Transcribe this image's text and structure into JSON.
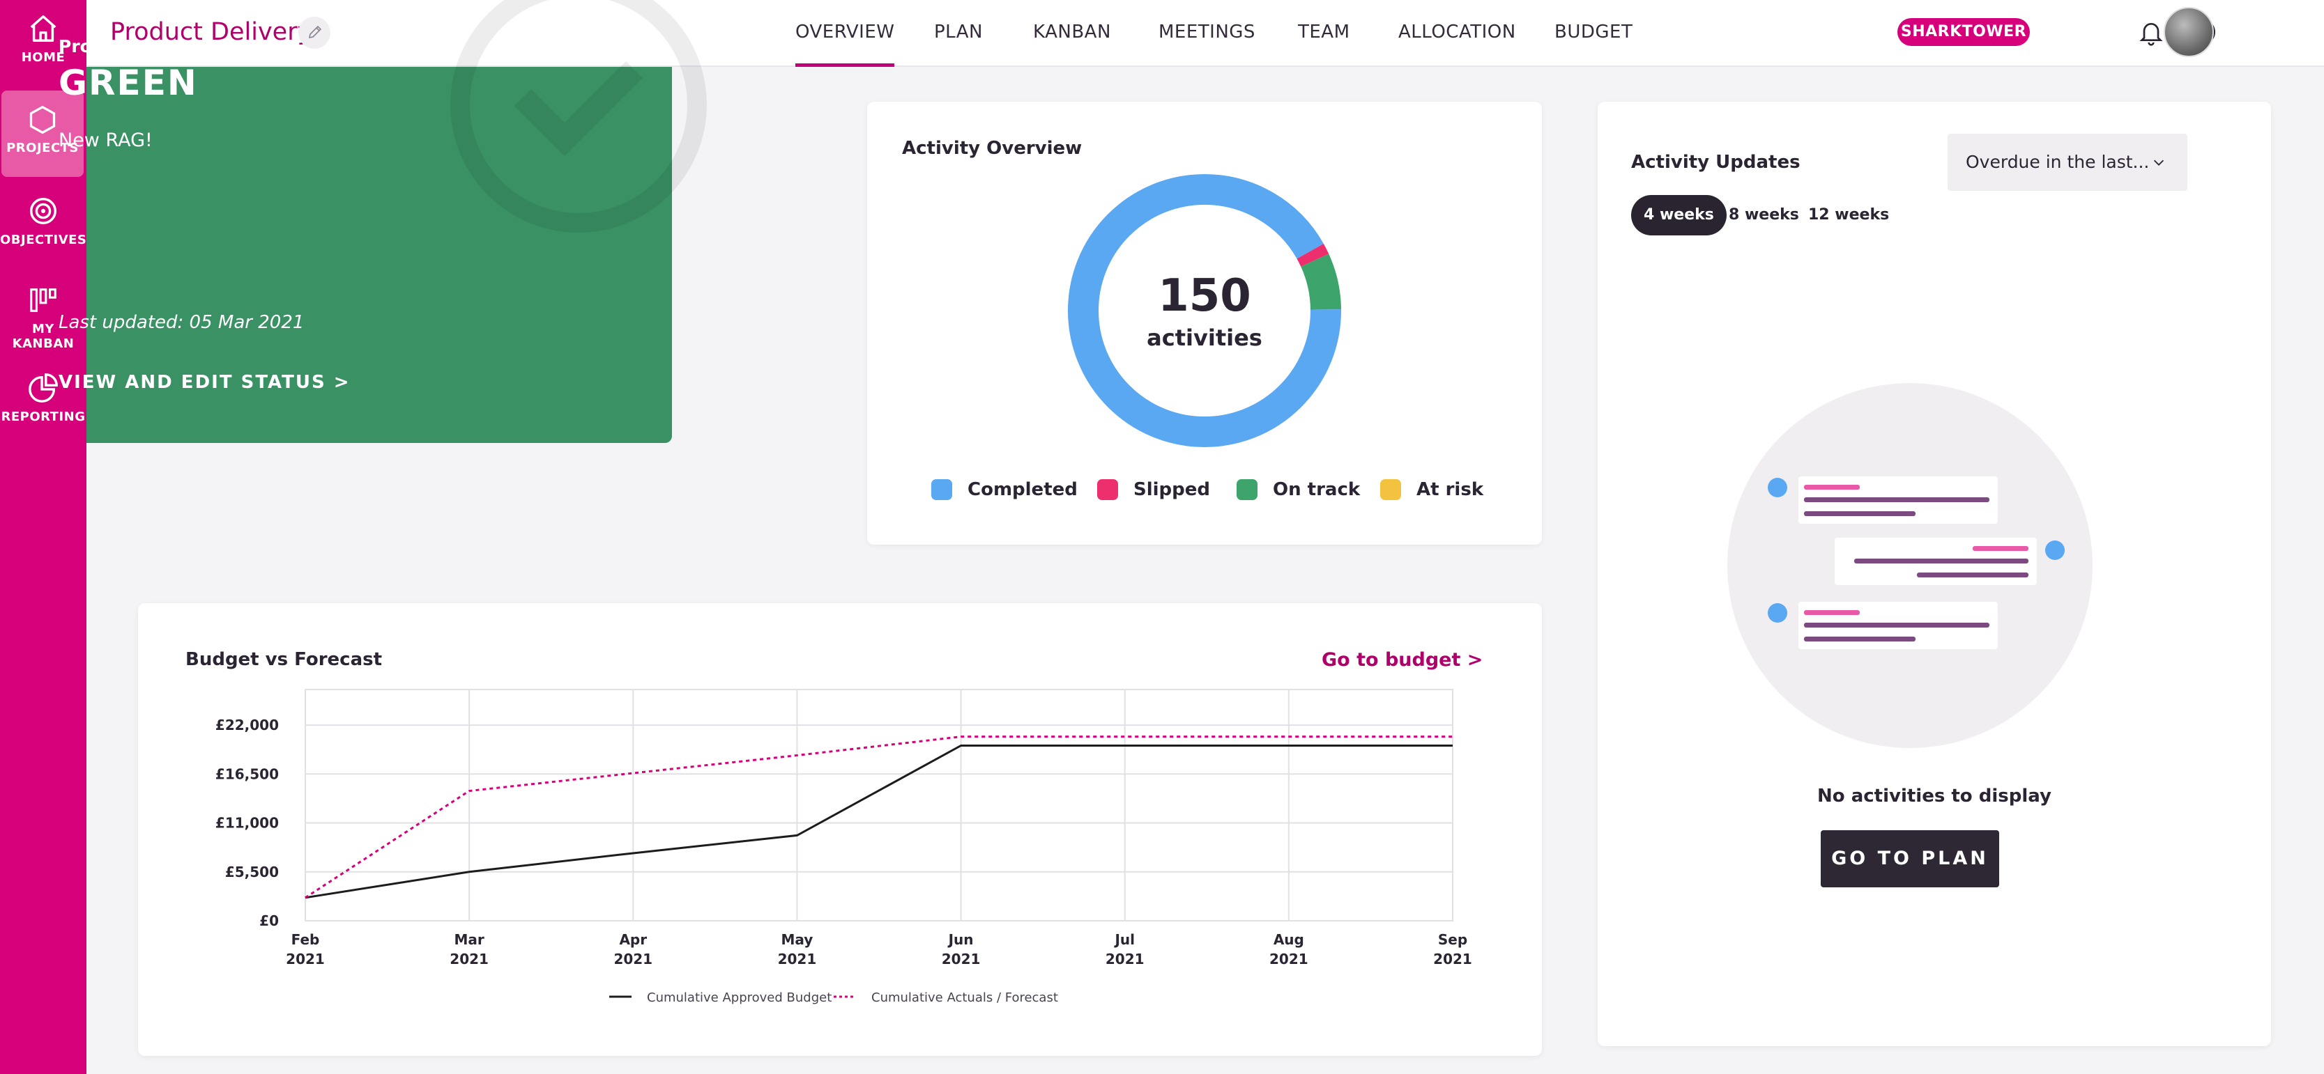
{
  "sidebar": {
    "items": [
      {
        "label": "HOME",
        "icon": "home-icon"
      },
      {
        "label": "PROJECTS",
        "icon": "hexagon-icon"
      },
      {
        "label": "OBJECTIVES",
        "icon": "target-icon"
      },
      {
        "label": "MY KANBAN",
        "icon": "kanban-icon"
      },
      {
        "label": "REPORTING",
        "icon": "pie-chart-icon"
      }
    ]
  },
  "header": {
    "project_title": "Product Delivery",
    "tabs": [
      "OVERVIEW",
      "PLAN",
      "KANBAN",
      "MEETINGS",
      "TEAM",
      "ALLOCATION",
      "BUDGET"
    ],
    "active_tab": "OVERVIEW",
    "brand_badge": "SHARKTOWER"
  },
  "status": {
    "label": "Project status",
    "value": "GREEN",
    "note": "New RAG!",
    "last_updated": "Last updated: 05 Mar 2021",
    "link": "VIEW AND EDIT STATUS >",
    "color": "#3a9163"
  },
  "activity_overview": {
    "title": "Activity Overview",
    "total": "150",
    "total_label": "activities",
    "legend": [
      {
        "label": "Completed",
        "color": "#5aa7f2"
      },
      {
        "label": "Slipped",
        "color": "#ee2f6d"
      },
      {
        "label": "On track",
        "color": "#3da46b"
      },
      {
        "label": "At risk",
        "color": "#f3c23e"
      }
    ]
  },
  "activity_updates": {
    "title": "Activity Updates",
    "select_value": "Overdue in the last...",
    "periods": [
      "4 weeks",
      "8 weeks",
      "12 weeks"
    ],
    "active_period": "4 weeks",
    "empty_text": "No activities to display",
    "button": "GO TO PLAN"
  },
  "budget": {
    "title": "Budget vs Forecast",
    "link": "Go to budget >"
  },
  "chart_data": [
    {
      "type": "pie",
      "title": "Activity Overview",
      "labels": [
        "Completed",
        "Slipped",
        "On track",
        "At risk"
      ],
      "values": [
        138,
        2,
        10,
        0
      ],
      "total": 150
    },
    {
      "type": "line",
      "title": "Budget vs Forecast",
      "x": [
        "Feb 2021",
        "Mar 2021",
        "Apr 2021",
        "May 2021",
        "Jun 2021",
        "Jul 2021",
        "Aug 2021",
        "Sep 2021"
      ],
      "xticks": [
        [
          "Feb",
          "2021"
        ],
        [
          "Mar",
          "2021"
        ],
        [
          "Apr",
          "2021"
        ],
        [
          "May",
          "2021"
        ],
        [
          "Jun",
          "2021"
        ],
        [
          "Jul",
          "2021"
        ],
        [
          "Aug",
          "2021"
        ],
        [
          "Sep",
          "2021"
        ]
      ],
      "yticks": [
        "£0",
        "£5,500",
        "£11,000",
        "£16,500",
        "£22,000"
      ],
      "ytick_values": [
        0,
        5500,
        11000,
        16500,
        22000
      ],
      "ylim": [
        0,
        26000
      ],
      "grid": true,
      "legend_position": "bottom",
      "series": [
        {
          "name": "Cumulative Approved Budget",
          "values": [
            2600,
            5500,
            7600,
            9600,
            19700,
            19700,
            19700,
            19700
          ],
          "color": "#1c1c1c",
          "dash": false
        },
        {
          "name": "Cumulative Actuals / Forecast",
          "values": [
            2600,
            14600,
            16600,
            18600,
            20700,
            20700,
            20700,
            20700
          ],
          "color": "#d6007a",
          "dash": true
        }
      ]
    }
  ]
}
